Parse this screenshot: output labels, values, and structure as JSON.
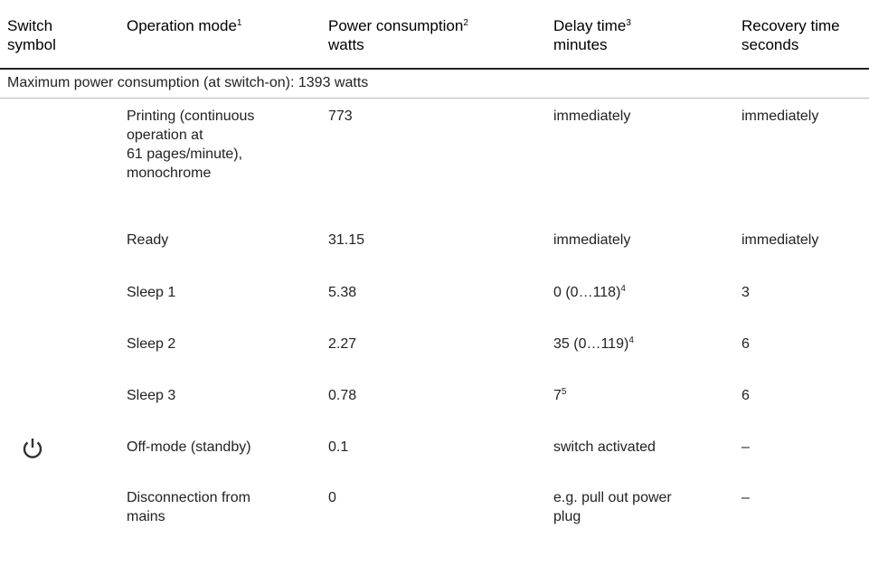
{
  "header": {
    "columns": [
      {
        "lines": [
          "Switch",
          "symbol"
        ]
      },
      {
        "lines": [
          "Operation mode"
        ],
        "sup": "1"
      },
      {
        "lines": [
          "Power consumption",
          "watts"
        ],
        "sup": "2"
      },
      {
        "lines": [
          "Delay time",
          "minutes"
        ],
        "sup": "3"
      },
      {
        "lines": [
          "Recovery time",
          "seconds"
        ]
      }
    ]
  },
  "section": "Maximum power consumption (at switch-on): 1393 watts",
  "rows": [
    {
      "mode": [
        "Printing (continuous",
        "operation at",
        "61 pages/minute),",
        "monochrome"
      ],
      "power": 773,
      "delay": {
        "lines": [
          "immediately"
        ]
      },
      "recovery": "immediately"
    },
    {
      "mode": [
        "Ready"
      ],
      "power": 31.15,
      "delay": {
        "lines": [
          "immediately"
        ]
      },
      "recovery": "immediately"
    },
    {
      "mode": [
        "Sleep 1"
      ],
      "power": 5.38,
      "delay": {
        "lines": [
          "0 (0…118)"
        ],
        "sup": "4"
      },
      "recovery": 3
    },
    {
      "mode": [
        "Sleep 2"
      ],
      "power": 2.27,
      "delay": {
        "lines": [
          "35 (0…119)"
        ],
        "sup": "4"
      },
      "recovery": 6
    },
    {
      "mode": [
        "Sleep 3"
      ],
      "power": 0.78,
      "delay": {
        "lines": [
          "7"
        ],
        "sup": "5"
      },
      "recovery": 6
    },
    {
      "mode": [
        "Off-mode (standby)"
      ],
      "power": 0.1,
      "delay": {
        "lines": [
          "switch activated"
        ]
      },
      "recovery": "–",
      "icon": true
    },
    {
      "mode": [
        "Disconnection from",
        "mains"
      ],
      "power": 0,
      "delay": {
        "lines": [
          "e.g. pull out power",
          "plug"
        ]
      },
      "recovery": "–"
    }
  ]
}
